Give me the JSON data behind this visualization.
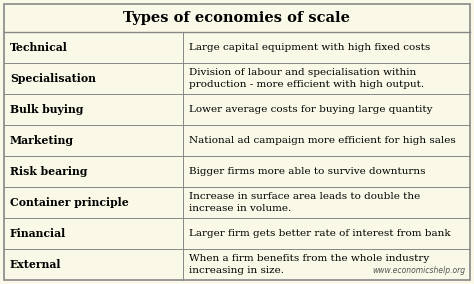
{
  "title": "Types of economies of scale",
  "bg_color": "#faf9e8",
  "border_color": "#888888",
  "header_fontsize": 10.5,
  "cell_fontsize": 7.8,
  "desc_fontsize": 7.5,
  "watermark": "www.economicshelp.org",
  "col_split": 0.385,
  "rows": [
    {
      "term": "Technical",
      "description": "Large capital equipment with high fixed costs"
    },
    {
      "term": "Specialisation",
      "description": "Division of labour and specialisation within\nproduction - more efficient with high output."
    },
    {
      "term": "Bulk buying",
      "description": "Lower average costs for buying large quantity"
    },
    {
      "term": "Marketing",
      "description": "National ad campaign more efficient for high sales"
    },
    {
      "term": "Risk bearing",
      "description": "Bigger firms more able to survive downturns"
    },
    {
      "term": "Container principle",
      "description": "Increase in surface area leads to double the\nincrease in volume."
    },
    {
      "term": "Financial",
      "description": "Larger firm gets better rate of interest from bank"
    },
    {
      "term": "External",
      "description": "When a firm benefits from the whole industry\nincreasing in size."
    }
  ]
}
